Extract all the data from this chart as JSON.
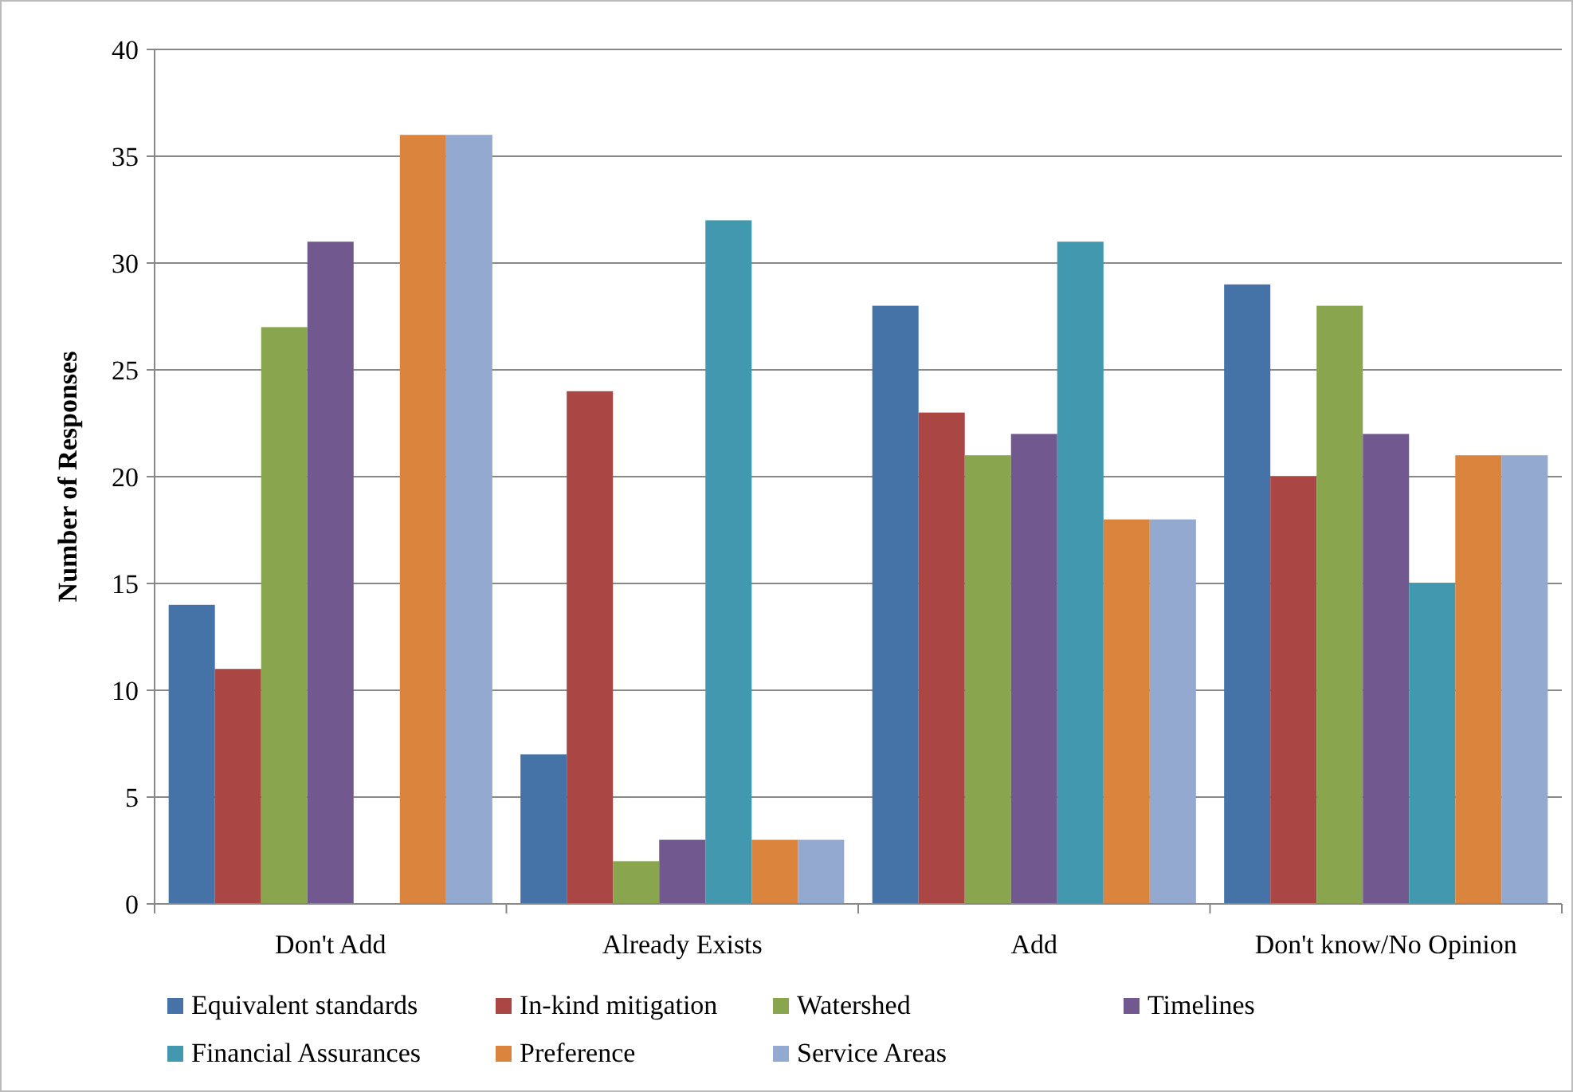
{
  "chart_data": {
    "type": "bar",
    "ylabel": "Number of Responses",
    "categories": [
      "Don't Add",
      "Already Exists",
      "Add",
      "Don't know/No Opinion"
    ],
    "series": [
      {
        "name": "Equivalent standards",
        "color": "#4572a7",
        "values": [
          14,
          7,
          28,
          29
        ]
      },
      {
        "name": "In-kind mitigation",
        "color": "#aa4643",
        "values": [
          11,
          24,
          23,
          20
        ]
      },
      {
        "name": "Watershed",
        "color": "#89a54e",
        "values": [
          27,
          2,
          21,
          28
        ]
      },
      {
        "name": "Timelines",
        "color": "#71588f",
        "values": [
          31,
          3,
          22,
          22
        ]
      },
      {
        "name": "Financial Assurances",
        "color": "#4198af",
        "values": [
          0,
          32,
          31,
          15
        ]
      },
      {
        "name": "Preference",
        "color": "#db843d",
        "values": [
          36,
          3,
          18,
          21
        ]
      },
      {
        "name": "Service Areas",
        "color": "#93a9cf",
        "values": [
          36,
          3,
          18,
          21
        ]
      }
    ],
    "ylim": [
      0,
      40
    ],
    "yticks": [
      0,
      5,
      10,
      15,
      20,
      25,
      30,
      35,
      40
    ],
    "grid": "y",
    "legend": "bottom"
  }
}
